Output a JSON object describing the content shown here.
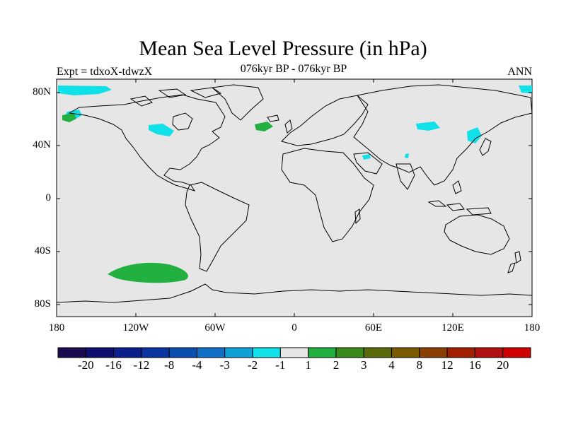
{
  "title": "Mean Sea Level Pressure (in hPa)",
  "subtitle": "076kyr BP - 076kyr BP",
  "left_label": "Expt = tdxoX-tdwzX",
  "right_label": "ANN",
  "axes": {
    "lat_labels": [
      "80N",
      "40N",
      "0",
      "40S",
      "80S"
    ],
    "lon_labels": [
      "180",
      "120W",
      "60W",
      "0",
      "60E",
      "120E",
      "180"
    ]
  },
  "colorbar": {
    "labels": [
      "-20",
      "-16",
      "-12",
      "-8",
      "-4",
      "-3",
      "-2",
      "-1",
      "1",
      "2",
      "3",
      "4",
      "8",
      "12",
      "16",
      "20"
    ],
    "colors": [
      "#1a0a4f",
      "#0d0f6e",
      "#0a1f8c",
      "#0a35a0",
      "#0a4fb0",
      "#1070c8",
      "#10a0d8",
      "#10e0e8",
      "#e6e6e6",
      "#22b040",
      "#3a8a1a",
      "#5a6a0a",
      "#7a5a00",
      "#8a4000",
      "#a02000",
      "#b01010",
      "#d00000"
    ]
  },
  "colors": {
    "ocean_background": "#e6e6e6",
    "positive_anomaly": "#22b040",
    "negative_anomaly": "#10e0e8"
  }
}
